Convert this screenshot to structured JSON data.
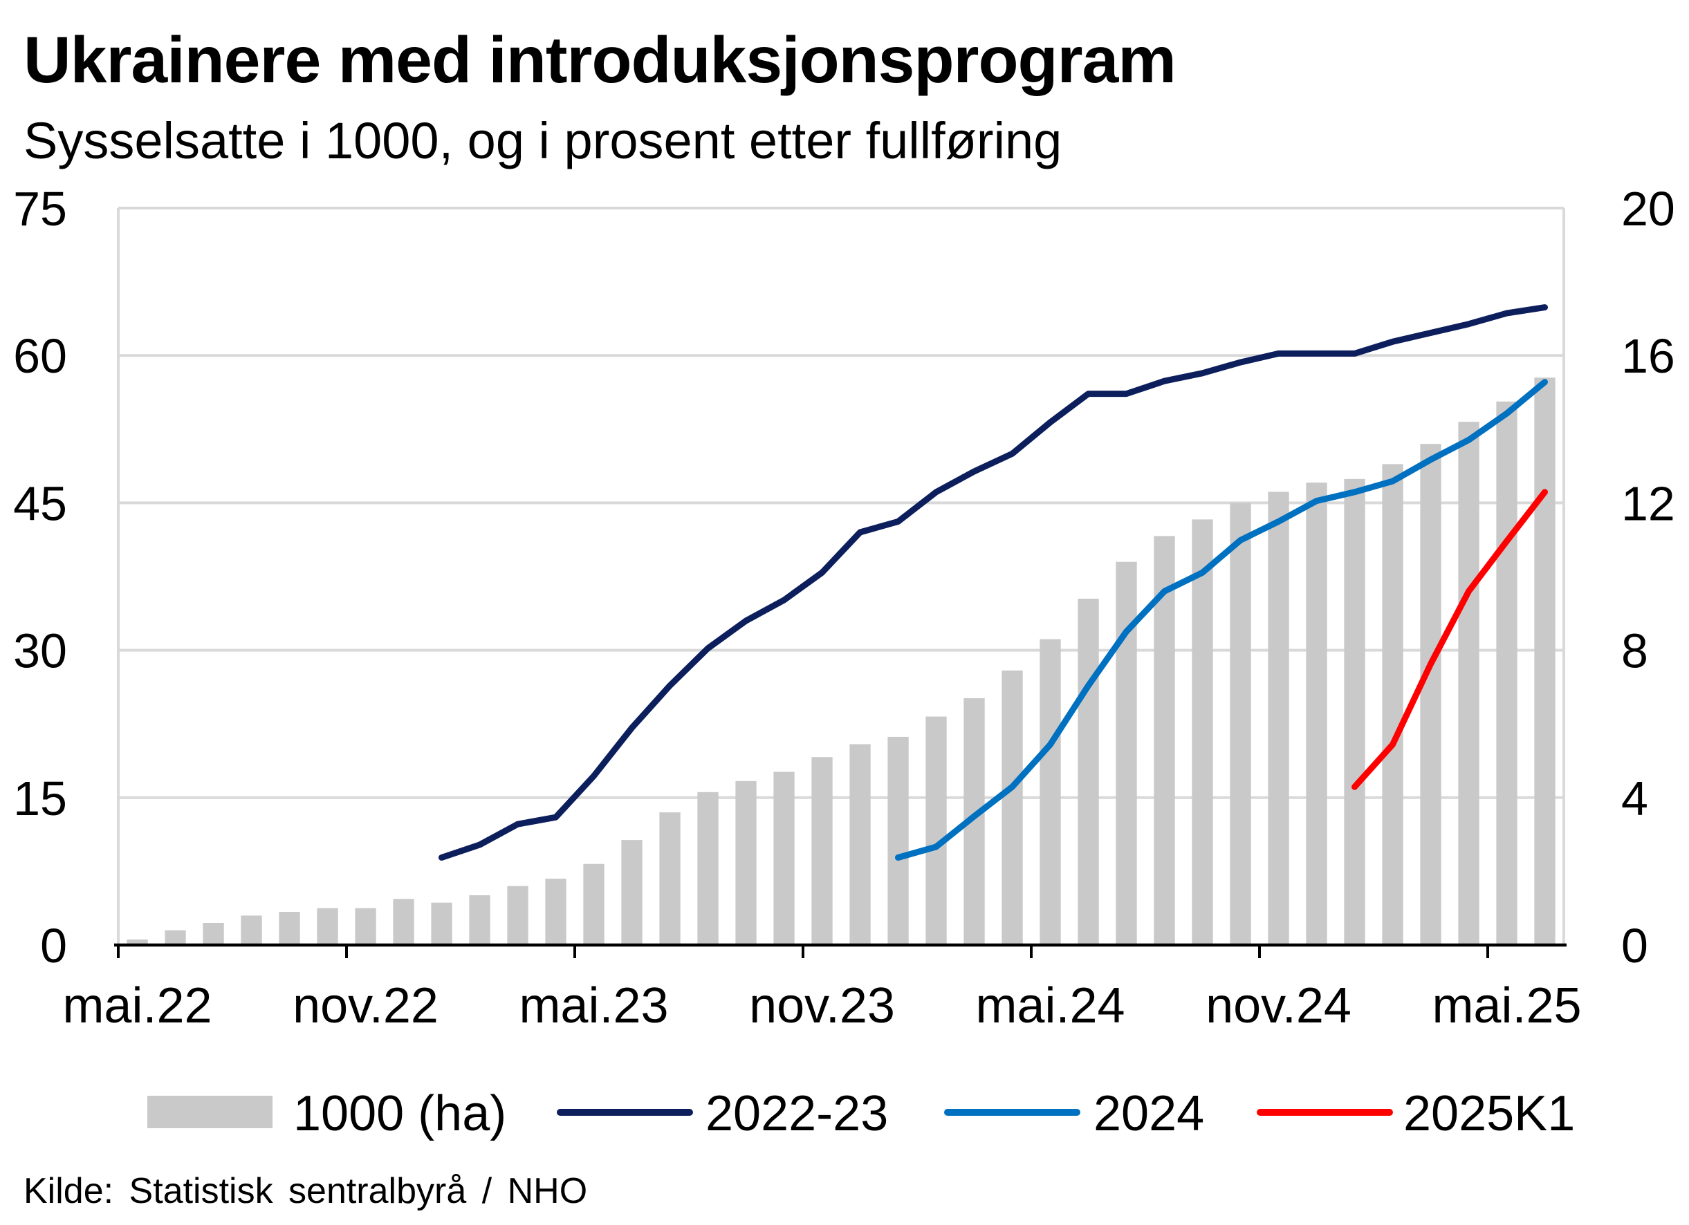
{
  "chart_data": {
    "type": "bar",
    "title": "Ukrainere med introduksjonsprogram",
    "subtitle": "Sysselsatte i 1000, og i prosent etter fullføring",
    "source": "Kilde: Statistisk sentralbyrå / NHO",
    "categories": [
      "mai.22",
      "",
      "",
      "",
      "",
      "",
      "nov.22",
      "",
      "",
      "",
      "",
      "",
      "mai.23",
      "",
      "",
      "",
      "",
      "",
      "nov.23",
      "",
      "",
      "",
      "",
      "",
      "mai.24",
      "",
      "",
      "",
      "",
      "",
      "nov.24",
      "",
      "",
      "",
      "",
      "",
      "mai.25",
      ""
    ],
    "y_left": {
      "range": [
        0,
        75
      ],
      "ticks": [
        0,
        15,
        30,
        45,
        60,
        75
      ]
    },
    "y_right": {
      "range": [
        0,
        20
      ],
      "ticks": [
        0,
        4,
        8,
        12,
        16,
        20
      ]
    },
    "grid": true,
    "legend_position": "bottom",
    "series": [
      {
        "name": "1000 (ha)",
        "type": "bar",
        "axis": "right",
        "color": "#c9c9c9",
        "values": [
          0.15,
          0.4,
          0.6,
          0.8,
          0.9,
          1.0,
          1.0,
          1.25,
          1.15,
          1.35,
          1.6,
          1.8,
          2.2,
          2.85,
          3.6,
          4.15,
          4.45,
          4.7,
          5.1,
          5.45,
          5.65,
          6.2,
          6.7,
          7.45,
          8.3,
          9.4,
          10.4,
          11.1,
          11.55,
          12.0,
          12.3,
          12.55,
          12.65,
          13.05,
          13.6,
          14.2,
          14.75,
          15.4
        ]
      },
      {
        "name": "2022-23",
        "type": "line",
        "axis": "left",
        "color": "#0c1f5c",
        "values": [
          null,
          null,
          null,
          null,
          null,
          null,
          null,
          null,
          8.9,
          10.2,
          12.3,
          13.0,
          17.2,
          22.1,
          26.4,
          30.2,
          33.0,
          35.1,
          37.9,
          42.0,
          43.1,
          46.1,
          48.2,
          50.0,
          53.2,
          56.1,
          56.1,
          57.4,
          58.2,
          59.3,
          60.2,
          60.2,
          60.2,
          61.4,
          62.3,
          63.2,
          64.3,
          64.9
        ]
      },
      {
        "name": "2024",
        "type": "line",
        "axis": "left",
        "color": "#0070c0",
        "values": [
          null,
          null,
          null,
          null,
          null,
          null,
          null,
          null,
          null,
          null,
          null,
          null,
          null,
          null,
          null,
          null,
          null,
          null,
          null,
          null,
          8.9,
          10.0,
          13.1,
          16.1,
          20.4,
          26.4,
          31.9,
          36.0,
          37.9,
          41.2,
          43.1,
          45.2,
          46.1,
          47.2,
          49.4,
          51.4,
          54.1,
          57.3
        ]
      },
      {
        "name": "2025K1",
        "type": "line",
        "axis": "left",
        "color": "#ff0000",
        "values": [
          null,
          null,
          null,
          null,
          null,
          null,
          null,
          null,
          null,
          null,
          null,
          null,
          null,
          null,
          null,
          null,
          null,
          null,
          null,
          null,
          null,
          null,
          null,
          null,
          null,
          null,
          null,
          null,
          null,
          null,
          null,
          null,
          16.1,
          20.4,
          28.6,
          36.0,
          41.1,
          46.1
        ]
      }
    ]
  }
}
